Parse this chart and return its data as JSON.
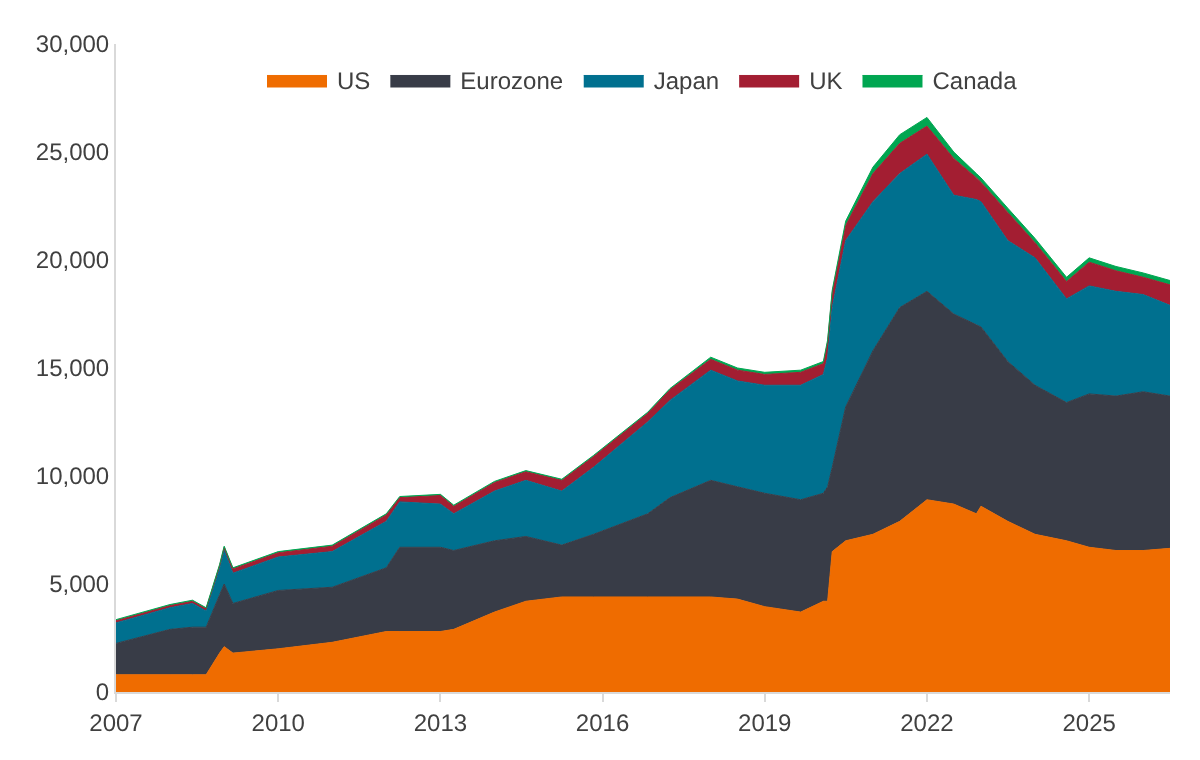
{
  "chart_data": {
    "type": "area",
    "stacked": true,
    "legend": "top",
    "marker": "none",
    "x": [
      "2007-01",
      "2008-01",
      "2008-06",
      "2008-09",
      "2008-12",
      "2009-01",
      "2009-03",
      "2010-01",
      "2011-01",
      "2012-01",
      "2012-04",
      "2013-01",
      "2013-04",
      "2014-01",
      "2014-08",
      "2015-04",
      "2015-11",
      "2016-11",
      "2017-04",
      "2018-01",
      "2018-07",
      "2019-01",
      "2019-09",
      "2020-02",
      "2020-03",
      "2020-04",
      "2020-07",
      "2021-01",
      "2021-07",
      "2022-01",
      "2022-07",
      "2022-12",
      "2023-01",
      "2023-07",
      "2024-01",
      "2024-08",
      "2025-01",
      "2025-07",
      "2026-01",
      "2026-07"
    ],
    "xlim": [
      "2007-01",
      "2026-07"
    ],
    "xticks": [
      "2007",
      "2010",
      "2013",
      "2016",
      "2019",
      "2022",
      "2025"
    ],
    "ylim": [
      0,
      30000
    ],
    "yticks": [
      0,
      {
        "value": 5000,
        "label": "5,000"
      },
      {
        "value": 10000,
        "label": "10,000"
      },
      {
        "value": 15000,
        "label": "15,000"
      },
      {
        "value": 20000,
        "label": "20,000"
      },
      {
        "value": 25000,
        "label": "25,000"
      },
      {
        "value": 30000,
        "label": "30,000"
      }
    ],
    "series": [
      {
        "name": "US",
        "color": "#ef6c00",
        "values": [
          800,
          800,
          800,
          800,
          1800,
          2100,
          1800,
          2000,
          2300,
          2800,
          2800,
          2800,
          2900,
          3700,
          4200,
          4400,
          4400,
          4400,
          4400,
          4400,
          4300,
          3950,
          3700,
          4200,
          4200,
          6500,
          7000,
          7300,
          7900,
          8900,
          8700,
          8250,
          8600,
          7900,
          7300,
          7000,
          6700,
          6550,
          6550,
          6650
        ]
      },
      {
        "name": "Eurozone",
        "color": "#383c47",
        "values": [
          1450,
          2100,
          2200,
          2200,
          2700,
          2900,
          2300,
          2700,
          2550,
          2950,
          3900,
          3900,
          3650,
          3300,
          3000,
          2400,
          2900,
          3850,
          4600,
          5400,
          5200,
          5250,
          5200,
          5000,
          5300,
          3900,
          6200,
          8500,
          9900,
          9650,
          8800,
          8750,
          8300,
          7400,
          6900,
          6400,
          7100,
          7150,
          7350,
          7050
        ]
      },
      {
        "name": "Japan",
        "color": "#00708f",
        "values": [
          950,
          1000,
          1100,
          750,
          1200,
          1550,
          1400,
          1550,
          1650,
          2150,
          2100,
          2000,
          1700,
          2300,
          2600,
          2500,
          3100,
          4250,
          4500,
          5100,
          4900,
          5000,
          5300,
          5500,
          6000,
          7400,
          7700,
          6900,
          6200,
          6350,
          5500,
          5800,
          5800,
          5600,
          5900,
          4800,
          5000,
          4850,
          4500,
          4200
        ]
      },
      {
        "name": "UK",
        "color": "#a31e32",
        "values": [
          100,
          100,
          100,
          100,
          150,
          150,
          200,
          200,
          250,
          300,
          200,
          400,
          350,
          400,
          400,
          500,
          500,
          400,
          500,
          500,
          500,
          500,
          600,
          500,
          700,
          700,
          700,
          1300,
          1400,
          1300,
          1700,
          1000,
          900,
          1300,
          700,
          800,
          1100,
          950,
          800,
          950
        ]
      },
      {
        "name": "Canada",
        "color": "#00a651",
        "values": [
          50,
          50,
          50,
          50,
          50,
          50,
          50,
          50,
          50,
          50,
          50,
          50,
          50,
          50,
          50,
          50,
          50,
          50,
          50,
          100,
          100,
          100,
          100,
          100,
          100,
          100,
          200,
          300,
          400,
          400,
          300,
          200,
          200,
          200,
          200,
          200,
          200,
          200,
          200,
          200
        ]
      }
    ]
  }
}
